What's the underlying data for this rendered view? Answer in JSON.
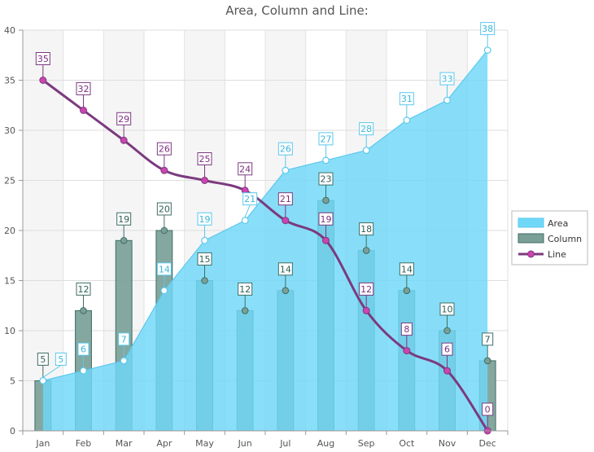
{
  "chart_data": {
    "type": "bar",
    "title": "Area, Column and Line:",
    "categories": [
      "Jan",
      "Feb",
      "Mar",
      "Apr",
      "May",
      "Jun",
      "Jul",
      "Aug",
      "Sep",
      "Oct",
      "Nov",
      "Dec"
    ],
    "ylim": [
      0,
      40
    ],
    "yticks": [
      0,
      5,
      10,
      15,
      20,
      25,
      30,
      35,
      40
    ],
    "xlabel": "",
    "ylabel": "",
    "grid": true,
    "legend_position": "right",
    "series": [
      {
        "name": "Area",
        "type": "area",
        "color": "#6fd8f8",
        "stroke": "#5cc8ee",
        "label_color": "#3cb8dc",
        "values": [
          5,
          6,
          7,
          14,
          19,
          21,
          26,
          27,
          28,
          31,
          33,
          38
        ]
      },
      {
        "name": "Column",
        "type": "column",
        "color": "#7a9f97",
        "stroke": "#3f6e66",
        "label_color": "#2f5f57",
        "values": [
          5,
          12,
          19,
          20,
          15,
          12,
          14,
          23,
          18,
          14,
          10,
          7
        ]
      },
      {
        "name": "Line",
        "type": "line",
        "color": "#7b3a7f",
        "marker": "#cc44b0",
        "label_color": "#7b2f7f",
        "values": [
          35,
          32,
          29,
          26,
          25,
          24,
          21,
          19,
          12,
          8,
          6,
          0
        ]
      }
    ]
  },
  "legend": {
    "items": [
      {
        "label": "Area"
      },
      {
        "label": "Column"
      },
      {
        "label": "Line"
      }
    ]
  }
}
